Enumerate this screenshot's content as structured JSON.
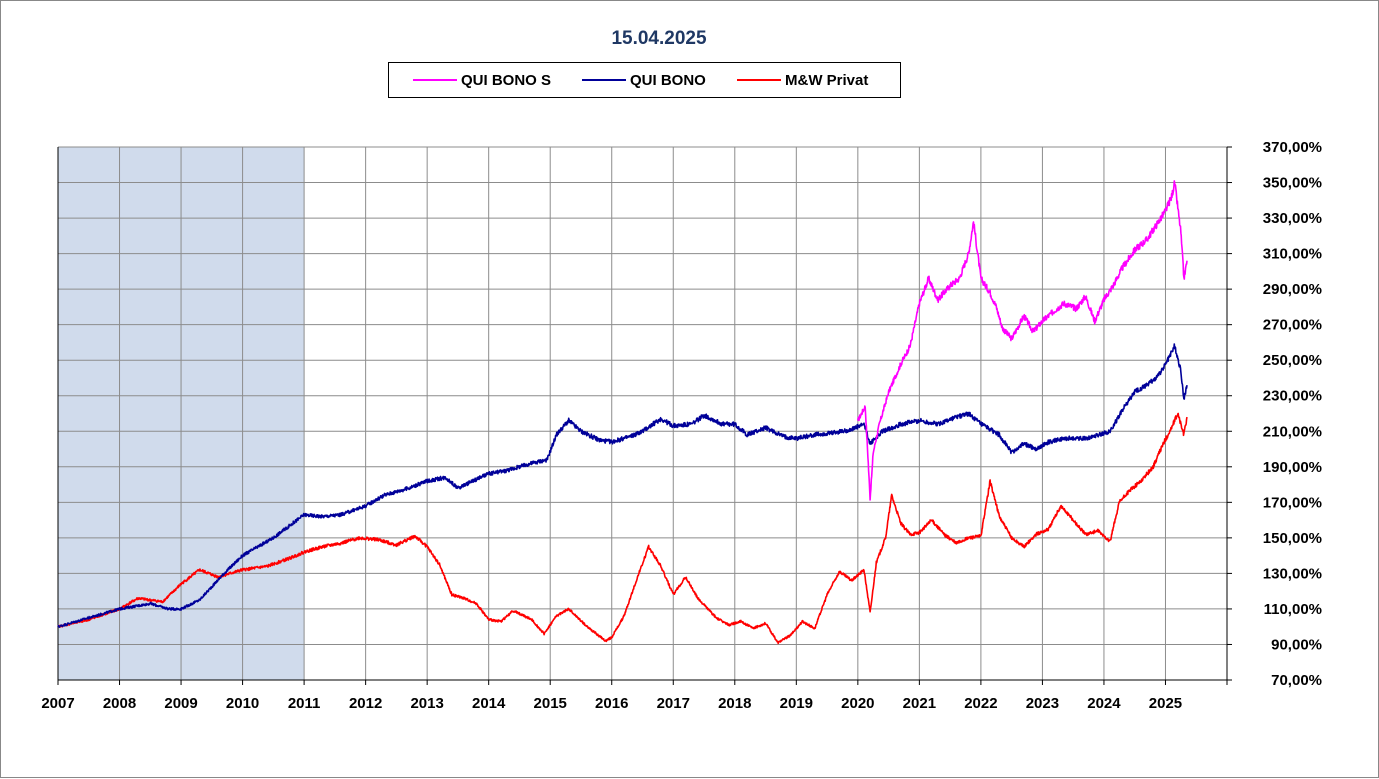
{
  "chart_data": {
    "type": "line",
    "title": "15.04.2025",
    "ylim": [
      70,
      370
    ],
    "xlim": [
      2007,
      2026
    ],
    "y_ticks": [
      "370,00%",
      "350,00%",
      "330,00%",
      "310,00%",
      "290,00%",
      "270,00%",
      "250,00%",
      "230,00%",
      "210,00%",
      "190,00%",
      "170,00%",
      "150,00%",
      "130,00%",
      "110,00%",
      "90,00%",
      "70,00%"
    ],
    "x_ticks": [
      "2007",
      "2008",
      "2009",
      "2010",
      "2011",
      "2012",
      "2013",
      "2014",
      "2015",
      "2016",
      "2017",
      "2018",
      "2019",
      "2020",
      "2021",
      "2022",
      "2023",
      "2024",
      "2025"
    ],
    "grid": true,
    "legend_position": "top-center",
    "shaded_period": [
      2007,
      2011
    ],
    "shaded_color": "#d0dbec",
    "series": [
      {
        "name": "QUI BONO S",
        "color": "#ff00ff",
        "points": [
          [
            2020.0,
            216
          ],
          [
            2020.12,
            224
          ],
          [
            2020.2,
            172
          ],
          [
            2020.25,
            198
          ],
          [
            2020.35,
            214
          ],
          [
            2020.5,
            232
          ],
          [
            2020.7,
            248
          ],
          [
            2020.85,
            258
          ],
          [
            2021.0,
            282
          ],
          [
            2021.15,
            296
          ],
          [
            2021.3,
            284
          ],
          [
            2021.5,
            292
          ],
          [
            2021.65,
            296
          ],
          [
            2021.8,
            310
          ],
          [
            2021.88,
            328
          ],
          [
            2022.0,
            296
          ],
          [
            2022.15,
            288
          ],
          [
            2022.25,
            280
          ],
          [
            2022.35,
            268
          ],
          [
            2022.5,
            262
          ],
          [
            2022.7,
            275
          ],
          [
            2022.85,
            266
          ],
          [
            2023.0,
            272
          ],
          [
            2023.2,
            278
          ],
          [
            2023.35,
            282
          ],
          [
            2023.55,
            279
          ],
          [
            2023.7,
            286
          ],
          [
            2023.85,
            272
          ],
          [
            2024.0,
            284
          ],
          [
            2024.15,
            292
          ],
          [
            2024.3,
            302
          ],
          [
            2024.5,
            312
          ],
          [
            2024.7,
            318
          ],
          [
            2024.85,
            326
          ],
          [
            2025.0,
            334
          ],
          [
            2025.1,
            342
          ],
          [
            2025.15,
            350
          ],
          [
            2025.25,
            322
          ],
          [
            2025.3,
            296
          ],
          [
            2025.35,
            306
          ]
        ]
      },
      {
        "name": "QUI BONO",
        "color": "#000099",
        "points": [
          [
            2007.0,
            100
          ],
          [
            2007.5,
            105
          ],
          [
            2008.0,
            110
          ],
          [
            2008.5,
            113
          ],
          [
            2008.8,
            110
          ],
          [
            2009.0,
            110
          ],
          [
            2009.3,
            115
          ],
          [
            2009.7,
            130
          ],
          [
            2010.0,
            140
          ],
          [
            2010.5,
            150
          ],
          [
            2011.0,
            163
          ],
          [
            2011.3,
            162
          ],
          [
            2011.6,
            163
          ],
          [
            2012.0,
            168
          ],
          [
            2012.3,
            174
          ],
          [
            2012.7,
            178
          ],
          [
            2013.0,
            182
          ],
          [
            2013.3,
            184
          ],
          [
            2013.5,
            178
          ],
          [
            2013.8,
            183
          ],
          [
            2014.0,
            186
          ],
          [
            2014.3,
            188
          ],
          [
            2014.7,
            192
          ],
          [
            2014.95,
            194
          ],
          [
            2015.1,
            208
          ],
          [
            2015.3,
            216
          ],
          [
            2015.5,
            210
          ],
          [
            2015.8,
            205
          ],
          [
            2016.0,
            204
          ],
          [
            2016.3,
            207
          ],
          [
            2016.5,
            210
          ],
          [
            2016.8,
            217
          ],
          [
            2017.0,
            213
          ],
          [
            2017.3,
            214
          ],
          [
            2017.5,
            219
          ],
          [
            2017.8,
            214
          ],
          [
            2018.0,
            214
          ],
          [
            2018.2,
            208
          ],
          [
            2018.5,
            212
          ],
          [
            2018.8,
            207
          ],
          [
            2019.0,
            206
          ],
          [
            2019.3,
            208
          ],
          [
            2019.6,
            209
          ],
          [
            2019.9,
            211
          ],
          [
            2020.1,
            214
          ],
          [
            2020.2,
            203
          ],
          [
            2020.4,
            210
          ],
          [
            2020.7,
            214
          ],
          [
            2021.0,
            216
          ],
          [
            2021.3,
            214
          ],
          [
            2021.6,
            218
          ],
          [
            2021.8,
            220
          ],
          [
            2022.0,
            214
          ],
          [
            2022.3,
            208
          ],
          [
            2022.5,
            198
          ],
          [
            2022.7,
            203
          ],
          [
            2022.9,
            200
          ],
          [
            2023.1,
            204
          ],
          [
            2023.4,
            206
          ],
          [
            2023.7,
            206
          ],
          [
            2023.9,
            208
          ],
          [
            2024.1,
            210
          ],
          [
            2024.3,
            222
          ],
          [
            2024.5,
            232
          ],
          [
            2024.7,
            236
          ],
          [
            2024.9,
            242
          ],
          [
            2025.0,
            248
          ],
          [
            2025.15,
            258
          ],
          [
            2025.25,
            244
          ],
          [
            2025.3,
            228
          ],
          [
            2025.35,
            236
          ]
        ]
      },
      {
        "name": "M&W Privat",
        "color": "#ff0000",
        "points": [
          [
            2007.0,
            100
          ],
          [
            2007.5,
            104
          ],
          [
            2008.0,
            110
          ],
          [
            2008.3,
            116
          ],
          [
            2008.7,
            114
          ],
          [
            2009.0,
            124
          ],
          [
            2009.3,
            132
          ],
          [
            2009.6,
            128
          ],
          [
            2010.0,
            132
          ],
          [
            2010.4,
            134
          ],
          [
            2010.8,
            139
          ],
          [
            2011.0,
            142
          ],
          [
            2011.3,
            145
          ],
          [
            2011.6,
            147
          ],
          [
            2011.9,
            150
          ],
          [
            2012.2,
            149
          ],
          [
            2012.5,
            146
          ],
          [
            2012.8,
            151
          ],
          [
            2013.0,
            145
          ],
          [
            2013.2,
            135
          ],
          [
            2013.4,
            118
          ],
          [
            2013.6,
            116
          ],
          [
            2013.8,
            113
          ],
          [
            2014.0,
            104
          ],
          [
            2014.2,
            103
          ],
          [
            2014.4,
            109
          ],
          [
            2014.7,
            104
          ],
          [
            2014.9,
            96
          ],
          [
            2015.1,
            106
          ],
          [
            2015.3,
            110
          ],
          [
            2015.6,
            100
          ],
          [
            2015.9,
            92
          ],
          [
            2016.0,
            94
          ],
          [
            2016.2,
            106
          ],
          [
            2016.4,
            126
          ],
          [
            2016.6,
            145
          ],
          [
            2016.8,
            134
          ],
          [
            2017.0,
            118
          ],
          [
            2017.2,
            128
          ],
          [
            2017.4,
            116
          ],
          [
            2017.7,
            105
          ],
          [
            2017.9,
            101
          ],
          [
            2018.1,
            103
          ],
          [
            2018.3,
            99
          ],
          [
            2018.5,
            102
          ],
          [
            2018.7,
            91
          ],
          [
            2018.9,
            95
          ],
          [
            2019.1,
            103
          ],
          [
            2019.3,
            99
          ],
          [
            2019.5,
            118
          ],
          [
            2019.7,
            131
          ],
          [
            2019.9,
            126
          ],
          [
            2020.1,
            132
          ],
          [
            2020.2,
            108
          ],
          [
            2020.3,
            136
          ],
          [
            2020.45,
            150
          ],
          [
            2020.55,
            174
          ],
          [
            2020.7,
            158
          ],
          [
            2020.85,
            152
          ],
          [
            2021.0,
            153
          ],
          [
            2021.2,
            160
          ],
          [
            2021.4,
            152
          ],
          [
            2021.6,
            147
          ],
          [
            2021.8,
            150
          ],
          [
            2022.0,
            151
          ],
          [
            2022.15,
            182
          ],
          [
            2022.3,
            162
          ],
          [
            2022.5,
            150
          ],
          [
            2022.7,
            145
          ],
          [
            2022.9,
            152
          ],
          [
            2023.1,
            155
          ],
          [
            2023.3,
            168
          ],
          [
            2023.5,
            160
          ],
          [
            2023.7,
            152
          ],
          [
            2023.9,
            154
          ],
          [
            2024.1,
            148
          ],
          [
            2024.25,
            170
          ],
          [
            2024.4,
            176
          ],
          [
            2024.6,
            182
          ],
          [
            2024.8,
            190
          ],
          [
            2024.95,
            202
          ],
          [
            2025.1,
            212
          ],
          [
            2025.2,
            220
          ],
          [
            2025.3,
            208
          ],
          [
            2025.35,
            218
          ]
        ]
      }
    ]
  }
}
